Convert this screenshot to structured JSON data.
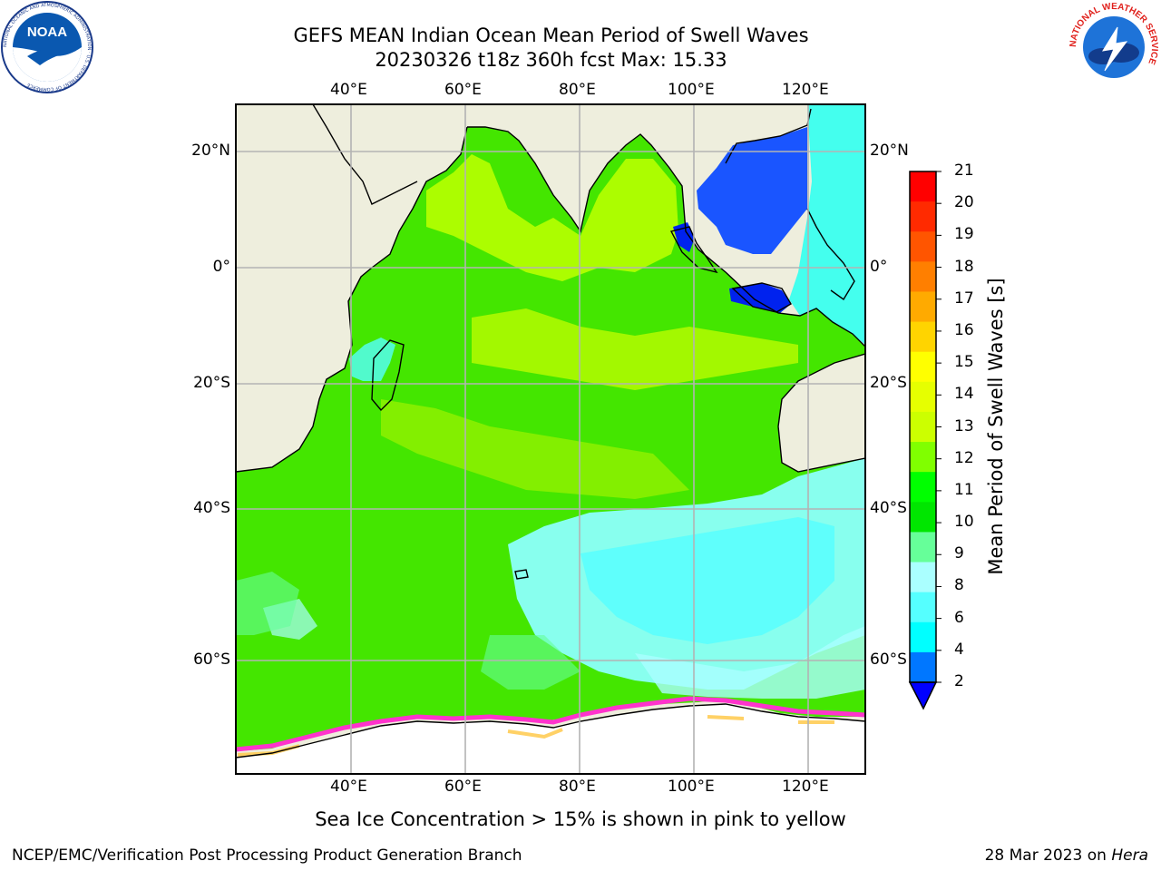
{
  "title_line1": "GEFS MEAN Indian Ocean Mean Period of Swell Waves",
  "title_line2": "20230326 t18z 360h fcst   Max: 15.33",
  "logos": {
    "left": {
      "name": "noaa-logo",
      "text": "NOAA",
      "ring_text": "NATIONAL OCEANIC AND ATMOSPHERIC ADMINISTRATION · U.S. DEPARTMENT OF COMMERCE"
    },
    "right": {
      "name": "nws-logo",
      "ring_text": "NATIONAL WEATHER SERVICE"
    }
  },
  "map": {
    "lon_labels": [
      "40°E",
      "60°E",
      "80°E",
      "100°E",
      "120°E"
    ],
    "lat_labels": [
      "20°N",
      "0°",
      "20°S",
      "40°S",
      "60°S"
    ],
    "colors": {
      "land": "#eeeedd",
      "grid": "#b3b3b3",
      "coast": "#000000"
    }
  },
  "colorbar": {
    "label": "Mean Period of Swell Waves [s]",
    "ticks": [
      "21",
      "20",
      "19",
      "18",
      "17",
      "16",
      "15",
      "14",
      "13",
      "12",
      "11",
      "10",
      "9",
      "8",
      "6",
      "4",
      "2"
    ],
    "colors": [
      "#ff0000",
      "#ff2a00",
      "#ff5500",
      "#ff7f00",
      "#ffaa00",
      "#ffd400",
      "#ffff00",
      "#e6ff00",
      "#ccff00",
      "#80ff00",
      "#00ff00",
      "#00e600",
      "#66ff99",
      "#aaffff",
      "#55ffff",
      "#00ffff",
      "#0077ff"
    ],
    "extend_color": "#0000ff"
  },
  "caption": "Sea Ice Concentration > 15% is shown in pink to yellow",
  "footer": {
    "left": "NCEP/EMC/Verification Post Processing Product Generation Branch",
    "right_prefix": "28 Mar 2023 on ",
    "right_machine": "Hera"
  }
}
